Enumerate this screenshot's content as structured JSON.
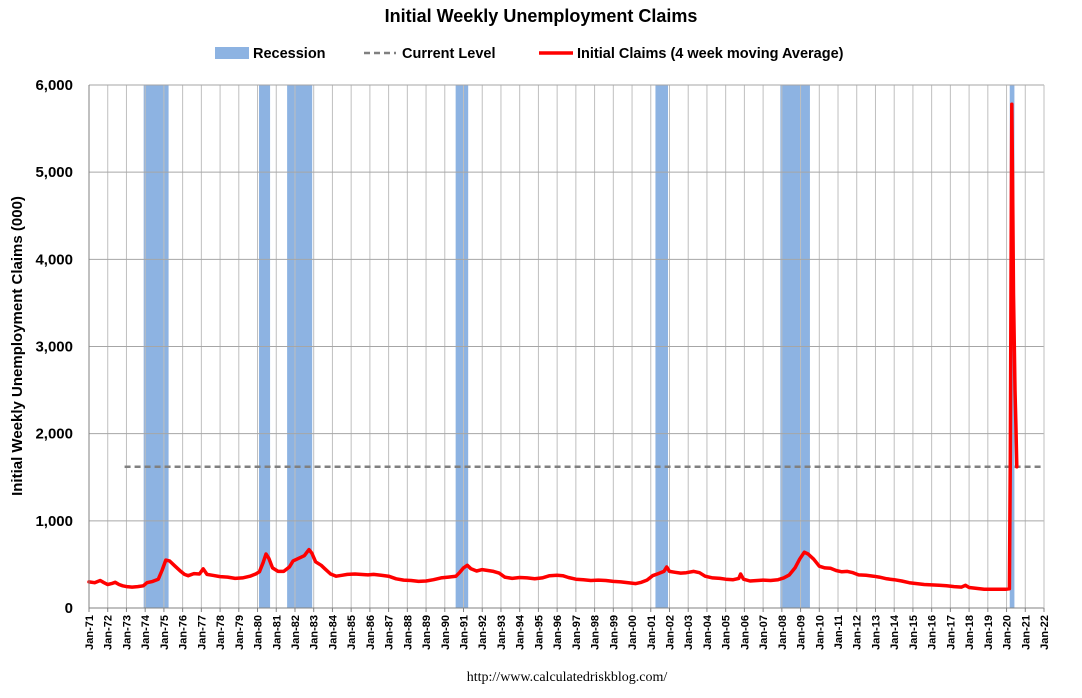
{
  "chart_data": {
    "type": "line",
    "title": "Initial Weekly Unemployment Claims",
    "ylabel": "Initial Weekly Unemployment Claims (000)",
    "xlabel": "",
    "source": "http://www.calculatedriskblog.com/",
    "ylim": [
      0,
      6000
    ],
    "xlim": [
      1971.0,
      2022.0
    ],
    "y_ticks": [
      0,
      1000,
      2000,
      3000,
      4000,
      5000,
      6000
    ],
    "y_tick_labels": [
      "0",
      "1,000",
      "2,000",
      "3,000",
      "4,000",
      "5,000",
      "6,000"
    ],
    "x_tick_labels": [
      "Jan-71",
      "Jan-72",
      "Jan-73",
      "Jan-74",
      "Jan-75",
      "Jan-76",
      "Jan-77",
      "Jan-78",
      "Jan-79",
      "Jan-80",
      "Jan-81",
      "Jan-82",
      "Jan-83",
      "Jan-84",
      "Jan-85",
      "Jan-86",
      "Jan-87",
      "Jan-88",
      "Jan-89",
      "Jan-90",
      "Jan-91",
      "Jan-92",
      "Jan-93",
      "Jan-94",
      "Jan-95",
      "Jan-96",
      "Jan-97",
      "Jan-98",
      "Jan-99",
      "Jan-00",
      "Jan-01",
      "Jan-02",
      "Jan-03",
      "Jan-04",
      "Jan-05",
      "Jan-06",
      "Jan-07",
      "Jan-08",
      "Jan-09",
      "Jan-10",
      "Jan-11",
      "Jan-12",
      "Jan-13",
      "Jan-14",
      "Jan-15",
      "Jan-16",
      "Jan-17",
      "Jan-18",
      "Jan-19",
      "Jan-20",
      "Jan-21",
      "Jan-22"
    ],
    "grid": true,
    "legend": {
      "placement": "top",
      "items": [
        {
          "label": "Recession",
          "kind": "band",
          "color": "#8db3e2"
        },
        {
          "label": "Current Level",
          "kind": "dash",
          "color": "#808080"
        },
        {
          "label": "Initial Claims (4 week moving Average)",
          "kind": "line",
          "color": "#ff0000"
        }
      ]
    },
    "recessions": [
      [
        1973.92,
        1975.25
      ],
      [
        1980.08,
        1980.67
      ],
      [
        1981.58,
        1982.92
      ],
      [
        1990.58,
        1991.25
      ],
      [
        2001.25,
        2001.92
      ],
      [
        2007.92,
        2009.5
      ],
      [
        2020.17,
        2020.42
      ]
    ],
    "current_level": {
      "value": 1620,
      "x_start": 1972.9,
      "x_end": 2022.0
    },
    "series": [
      {
        "name": "Initial Claims (4 week moving Average)",
        "color": "#ff0000",
        "points": [
          [
            1971.0,
            300
          ],
          [
            1971.3,
            290
          ],
          [
            1971.6,
            315
          ],
          [
            1971.8,
            290
          ],
          [
            1972.0,
            270
          ],
          [
            1972.2,
            280
          ],
          [
            1972.4,
            295
          ],
          [
            1972.6,
            270
          ],
          [
            1972.8,
            255
          ],
          [
            1973.0,
            245
          ],
          [
            1973.3,
            240
          ],
          [
            1973.6,
            245
          ],
          [
            1973.9,
            255
          ],
          [
            1974.1,
            290
          ],
          [
            1974.4,
            305
          ],
          [
            1974.7,
            330
          ],
          [
            1974.9,
            430
          ],
          [
            1975.1,
            550
          ],
          [
            1975.3,
            540
          ],
          [
            1975.6,
            480
          ],
          [
            1975.9,
            420
          ],
          [
            1976.1,
            385
          ],
          [
            1976.3,
            370
          ],
          [
            1976.6,
            395
          ],
          [
            1976.9,
            390
          ],
          [
            1977.1,
            450
          ],
          [
            1977.3,
            385
          ],
          [
            1977.6,
            375
          ],
          [
            1978.0,
            360
          ],
          [
            1978.4,
            355
          ],
          [
            1978.8,
            340
          ],
          [
            1979.2,
            345
          ],
          [
            1979.6,
            365
          ],
          [
            1979.9,
            390
          ],
          [
            1980.1,
            415
          ],
          [
            1980.3,
            520
          ],
          [
            1980.45,
            620
          ],
          [
            1980.6,
            570
          ],
          [
            1980.8,
            460
          ],
          [
            1981.1,
            420
          ],
          [
            1981.4,
            420
          ],
          [
            1981.7,
            470
          ],
          [
            1981.9,
            540
          ],
          [
            1982.2,
            570
          ],
          [
            1982.5,
            600
          ],
          [
            1982.75,
            670
          ],
          [
            1982.9,
            630
          ],
          [
            1983.1,
            530
          ],
          [
            1983.4,
            490
          ],
          [
            1983.6,
            450
          ],
          [
            1983.9,
            390
          ],
          [
            1984.2,
            365
          ],
          [
            1984.5,
            375
          ],
          [
            1984.8,
            385
          ],
          [
            1985.2,
            390
          ],
          [
            1985.5,
            385
          ],
          [
            1985.9,
            380
          ],
          [
            1986.2,
            385
          ],
          [
            1986.6,
            375
          ],
          [
            1987.0,
            365
          ],
          [
            1987.4,
            335
          ],
          [
            1987.8,
            320
          ],
          [
            1988.2,
            315
          ],
          [
            1988.6,
            305
          ],
          [
            1989.0,
            310
          ],
          [
            1989.4,
            325
          ],
          [
            1989.8,
            345
          ],
          [
            1990.2,
            355
          ],
          [
            1990.6,
            365
          ],
          [
            1990.8,
            410
          ],
          [
            1991.0,
            460
          ],
          [
            1991.2,
            490
          ],
          [
            1991.4,
            450
          ],
          [
            1991.7,
            425
          ],
          [
            1992.0,
            440
          ],
          [
            1992.3,
            430
          ],
          [
            1992.6,
            420
          ],
          [
            1992.9,
            400
          ],
          [
            1993.2,
            355
          ],
          [
            1993.6,
            340
          ],
          [
            1994.0,
            350
          ],
          [
            1994.4,
            345
          ],
          [
            1994.8,
            335
          ],
          [
            1995.2,
            345
          ],
          [
            1995.6,
            370
          ],
          [
            1996.0,
            375
          ],
          [
            1996.3,
            370
          ],
          [
            1996.6,
            350
          ],
          [
            1997.0,
            330
          ],
          [
            1997.4,
            325
          ],
          [
            1997.8,
            315
          ],
          [
            1998.2,
            320
          ],
          [
            1998.6,
            315
          ],
          [
            1999.0,
            305
          ],
          [
            1999.4,
            300
          ],
          [
            1999.8,
            290
          ],
          [
            2000.2,
            280
          ],
          [
            2000.5,
            295
          ],
          [
            2000.8,
            320
          ],
          [
            2001.1,
            370
          ],
          [
            2001.4,
            395
          ],
          [
            2001.7,
            420
          ],
          [
            2001.85,
            470
          ],
          [
            2002.0,
            420
          ],
          [
            2002.3,
            410
          ],
          [
            2002.6,
            400
          ],
          [
            2002.9,
            405
          ],
          [
            2003.3,
            420
          ],
          [
            2003.6,
            405
          ],
          [
            2003.9,
            365
          ],
          [
            2004.3,
            345
          ],
          [
            2004.7,
            340
          ],
          [
            2005.0,
            330
          ],
          [
            2005.4,
            325
          ],
          [
            2005.7,
            340
          ],
          [
            2005.8,
            390
          ],
          [
            2005.95,
            330
          ],
          [
            2006.3,
            310
          ],
          [
            2006.7,
            315
          ],
          [
            2007.0,
            320
          ],
          [
            2007.4,
            315
          ],
          [
            2007.8,
            325
          ],
          [
            2008.1,
            345
          ],
          [
            2008.4,
            380
          ],
          [
            2008.7,
            460
          ],
          [
            2008.95,
            560
          ],
          [
            2009.2,
            640
          ],
          [
            2009.4,
            620
          ],
          [
            2009.7,
            560
          ],
          [
            2010.0,
            480
          ],
          [
            2010.3,
            460
          ],
          [
            2010.6,
            455
          ],
          [
            2010.9,
            430
          ],
          [
            2011.2,
            415
          ],
          [
            2011.5,
            420
          ],
          [
            2011.8,
            405
          ],
          [
            2012.1,
            380
          ],
          [
            2012.5,
            375
          ],
          [
            2012.9,
            365
          ],
          [
            2013.2,
            355
          ],
          [
            2013.6,
            335
          ],
          [
            2014.0,
            325
          ],
          [
            2014.4,
            310
          ],
          [
            2014.8,
            290
          ],
          [
            2015.2,
            280
          ],
          [
            2015.6,
            270
          ],
          [
            2016.0,
            265
          ],
          [
            2016.4,
            260
          ],
          [
            2016.8,
            255
          ],
          [
            2017.2,
            245
          ],
          [
            2017.6,
            240
          ],
          [
            2017.8,
            260
          ],
          [
            2018.0,
            235
          ],
          [
            2018.4,
            225
          ],
          [
            2018.8,
            215
          ],
          [
            2019.2,
            215
          ],
          [
            2019.6,
            215
          ],
          [
            2019.95,
            215
          ],
          [
            2020.15,
            220
          ],
          [
            2020.2,
            1700
          ],
          [
            2020.25,
            4260
          ],
          [
            2020.28,
            5780
          ],
          [
            2020.32,
            5000
          ],
          [
            2020.37,
            3600
          ],
          [
            2020.45,
            2500
          ],
          [
            2020.5,
            2100
          ],
          [
            2020.55,
            1620
          ]
        ]
      }
    ]
  }
}
